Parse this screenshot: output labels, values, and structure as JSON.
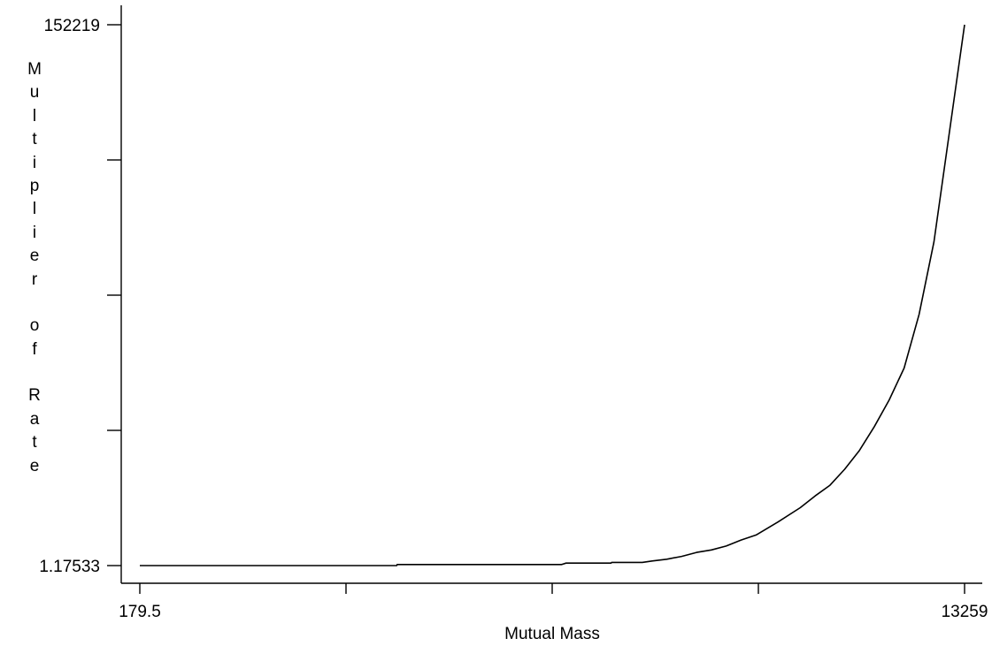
{
  "chart_data": {
    "type": "line",
    "title": "",
    "xlabel": "Mutual Mass",
    "ylabel": "Multiplier of Rate",
    "xlim": [
      179.5,
      13259
    ],
    "ylim": [
      1.17533,
      152219
    ],
    "x_tick_labels": [
      "179.5",
      "13259"
    ],
    "y_tick_labels": [
      "152219",
      "1.17533"
    ],
    "x_tick_count": 5,
    "y_tick_count": 5,
    "grid": false,
    "legend": "none",
    "line_color": "#000000",
    "series": [
      {
        "x": [
          179.5,
          4254,
          4261,
          6868,
          6940,
          7654,
          7663,
          8148,
          8303,
          8537,
          8773,
          9009,
          9244,
          9478,
          9714,
          9952,
          10302,
          10653,
          10888,
          11124,
          11357,
          11592,
          11828,
          12063,
          12300,
          12537,
          12773,
          13259
        ],
        "y": [
          1.18,
          1.18,
          300,
          300,
          700,
          700,
          900,
          900,
          1300,
          1800,
          2600,
          3700,
          4400,
          5500,
          7200,
          8600,
          12300,
          16300,
          19600,
          22600,
          27100,
          32400,
          39100,
          46600,
          55600,
          70700,
          91100,
          152219
        ]
      }
    ]
  }
}
